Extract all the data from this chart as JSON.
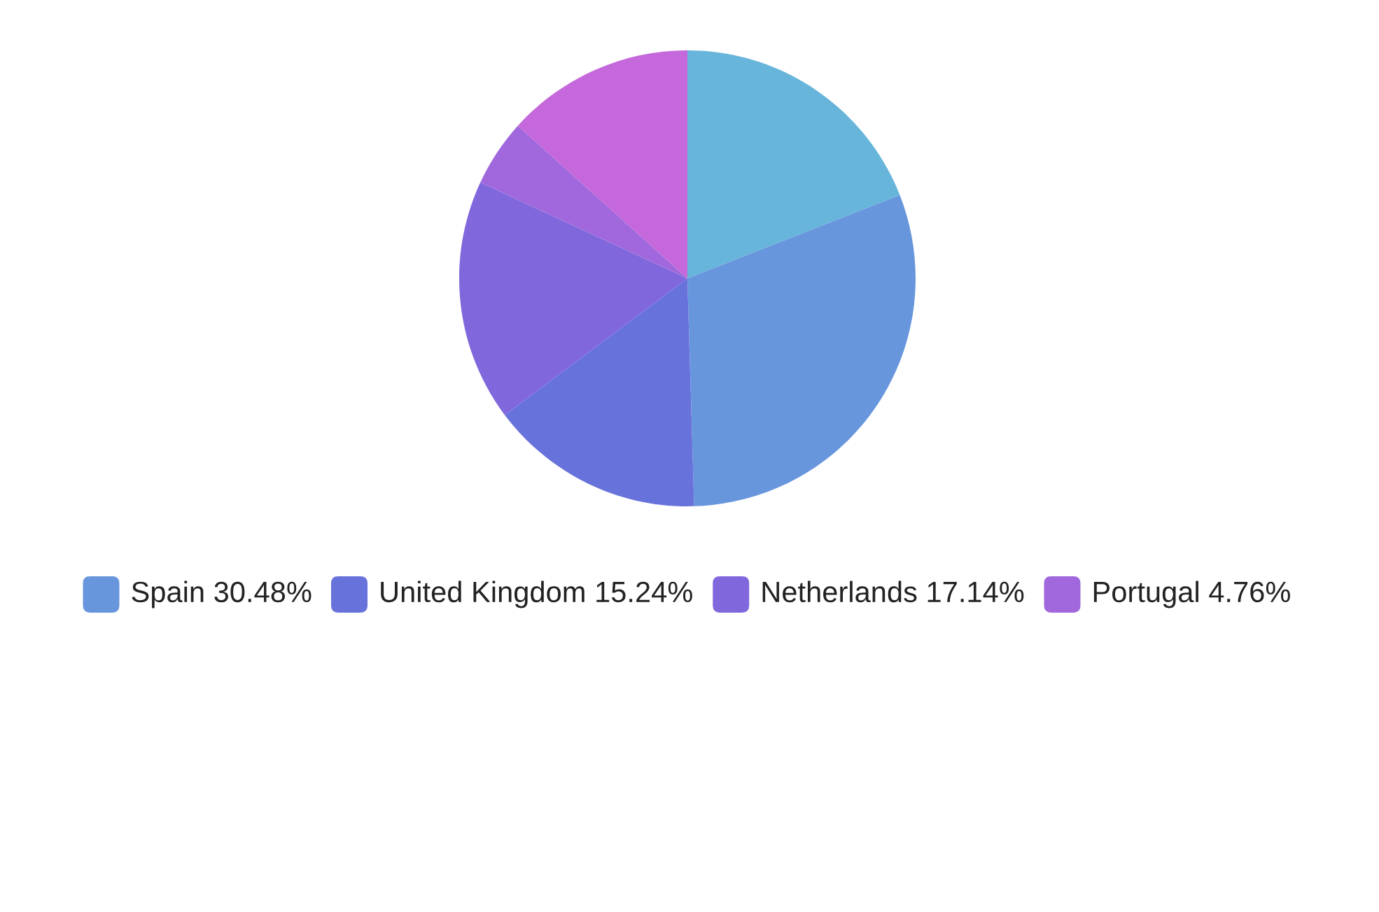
{
  "chart_data": {
    "type": "pie",
    "categories": [
      null,
      "Spain",
      "United Kingdom",
      "Netherlands",
      "Portugal",
      null
    ],
    "values": [
      19.05,
      30.48,
      15.24,
      17.14,
      4.76,
      13.33
    ],
    "value_labels": [
      null,
      "30.48%",
      "15.24%",
      "17.14%",
      "4.76%",
      null
    ],
    "colors": [
      "#67b5db",
      "#6896dd",
      "#6872db",
      "#8068dc",
      "#a068dc",
      "#c468db"
    ],
    "legend": "bottom"
  }
}
